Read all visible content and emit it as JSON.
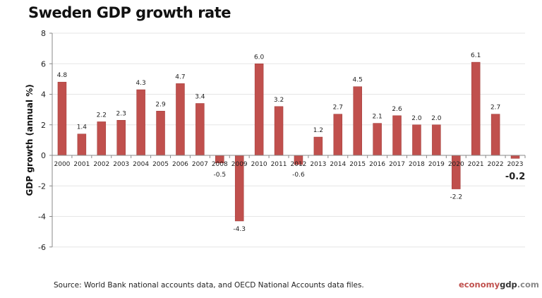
{
  "chart_data": {
    "type": "bar",
    "title": "Sweden GDP growth rate",
    "ylabel": "GDP growth (annual %)",
    "xlabel": "",
    "categories": [
      "2000",
      "2001",
      "2002",
      "2003",
      "2004",
      "2005",
      "2006",
      "2007",
      "2008",
      "2009",
      "2010",
      "2011",
      "2012",
      "2013",
      "2014",
      "2015",
      "2016",
      "2017",
      "2018",
      "2019",
      "2020",
      "2021",
      "2022",
      "2023"
    ],
    "values": [
      4.8,
      1.4,
      2.2,
      2.3,
      4.3,
      2.9,
      4.7,
      3.4,
      -0.5,
      -4.3,
      6.0,
      3.2,
      -0.6,
      1.2,
      2.7,
      4.5,
      2.1,
      2.6,
      2.0,
      2.0,
      -2.2,
      6.1,
      2.7,
      -0.2
    ],
    "data_labels": [
      "4.8",
      "1.4",
      "2.2",
      "2.3",
      "4.3",
      "2.9",
      "4.7",
      "3.4",
      "-0.5",
      "-4.3",
      "6.0",
      "3.2",
      "-0.6",
      "1.2",
      "2.7",
      "4.5",
      "2.1",
      "2.6",
      "2.0",
      "2.0",
      "-2.2",
      "6.1",
      "2.7",
      "-0.2"
    ],
    "ylim": [
      -6,
      8
    ],
    "yticks": [
      "-6",
      "-4",
      "-2",
      "0",
      "2",
      "4",
      "6",
      "8"
    ],
    "grid": true,
    "legend": "none",
    "bar_color": "#c0504d"
  },
  "footer": {
    "source": "Source: World Bank national accounts data, and OECD National Accounts data files.",
    "logo_a": "economy",
    "logo_b": "gdp",
    "logo_c": ".com"
  }
}
